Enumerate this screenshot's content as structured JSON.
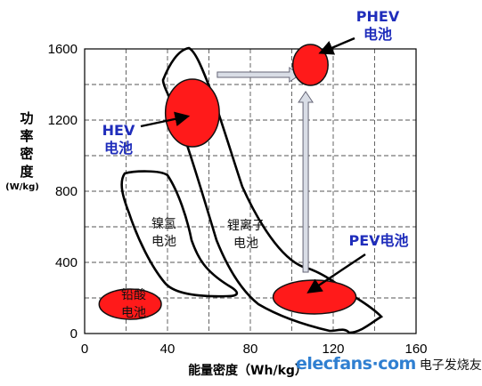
{
  "chart_data": {
    "type": "scatter",
    "title": "",
    "xlabel": "能量密度（Wh/kg）",
    "ylabel_lines": [
      "功",
      "率",
      "密",
      "度"
    ],
    "ylabel_unit": "(W/kg)",
    "xlim": [
      0,
      160
    ],
    "ylim": [
      0,
      1600
    ],
    "x_ticks": [
      {
        "value": 0,
        "label": "0"
      },
      {
        "value": 40,
        "label": "40"
      },
      {
        "value": 80,
        "label": "80"
      },
      {
        "value": 120,
        "label": "120"
      },
      {
        "value": 160,
        "label": "160"
      }
    ],
    "y_ticks": [
      {
        "value": 0,
        "label": "0"
      },
      {
        "value": 400,
        "label": "400"
      },
      {
        "value": 800,
        "label": "800"
      },
      {
        "value": 1200,
        "label": "1200"
      },
      {
        "value": 1600,
        "label": "1600"
      }
    ],
    "grid": true,
    "regions": [
      {
        "name": "铅酸电池",
        "lines": [
          "铅酸",
          "电池"
        ],
        "style": "filled",
        "color": "#ff1a1a",
        "x_range": [
          7,
          37
        ],
        "y_range": [
          80,
          250
        ]
      },
      {
        "name": "镍氢电池",
        "lines": [
          "镍氢",
          "电池"
        ],
        "style": "outline",
        "x_range": [
          20,
          75
        ],
        "y_range": [
          220,
          900
        ]
      },
      {
        "name": "锂离子电池",
        "lines": [
          "锂离子",
          "电池"
        ],
        "style": "outline",
        "x_range": [
          45,
          145
        ],
        "y_range": [
          0,
          1600
        ]
      }
    ],
    "targets": [
      {
        "name": "HEV电池",
        "lines": [
          "HEV",
          "电池"
        ],
        "center": [
          52,
          1240
        ],
        "rx": 13,
        "ry": 190,
        "color": "#ff1a1a"
      },
      {
        "name": "PHEV电池",
        "lines": [
          "PHEV",
          "电池"
        ],
        "center": [
          109,
          1510
        ],
        "rx": 8.5,
        "ry": 115,
        "color": "#ff1a1a"
      },
      {
        "name": "PEV电池",
        "lines": [
          "PEV电池"
        ],
        "center": [
          111,
          205
        ],
        "rx": 20,
        "ry": 95,
        "color": "#ff1a1a"
      }
    ],
    "arrows": [
      {
        "from": "HEV电池",
        "to": "PHEV电池",
        "style": "block"
      },
      {
        "from": "PEV电池",
        "to": "PHEV电池",
        "style": "block"
      }
    ],
    "label_color": "#1f2dbb"
  },
  "watermark": {
    "brand": "elecfans·com",
    "cn": "电子发烧友"
  }
}
